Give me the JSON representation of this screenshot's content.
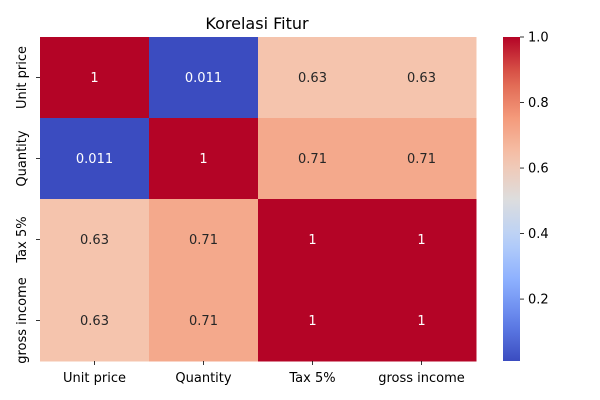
{
  "chart_data": {
    "type": "heatmap",
    "title": "Korelasi Fitur",
    "x_categories": [
      "Unit price",
      "Quantity",
      "Tax 5%",
      "gross income"
    ],
    "y_categories": [
      "Unit price",
      "Quantity",
      "Tax 5%",
      "gross income"
    ],
    "values": [
      [
        1,
        0.011,
        0.63,
        0.63
      ],
      [
        0.011,
        1,
        0.71,
        0.71
      ],
      [
        0.63,
        0.71,
        1,
        1
      ],
      [
        0.63,
        0.71,
        1,
        1
      ]
    ],
    "cell_labels": [
      [
        "1",
        "0.011",
        "0.63",
        "0.63"
      ],
      [
        "0.011",
        "1",
        "0.71",
        "0.71"
      ],
      [
        "0.63",
        "0.71",
        "1",
        "1"
      ],
      [
        "0.63",
        "0.71",
        "1",
        "1"
      ]
    ],
    "colormap": "coolwarm",
    "colorbar": {
      "range": [
        0.011,
        1.0
      ],
      "ticks": [
        0.2,
        0.4,
        0.6,
        0.8,
        1.0
      ],
      "tick_labels": [
        "0.2",
        "0.4",
        "0.6",
        "0.8",
        "1.0"
      ]
    },
    "colors": {
      "low": "#3b4cc0",
      "mid": "#dddddd",
      "high": "#b40426"
    }
  }
}
